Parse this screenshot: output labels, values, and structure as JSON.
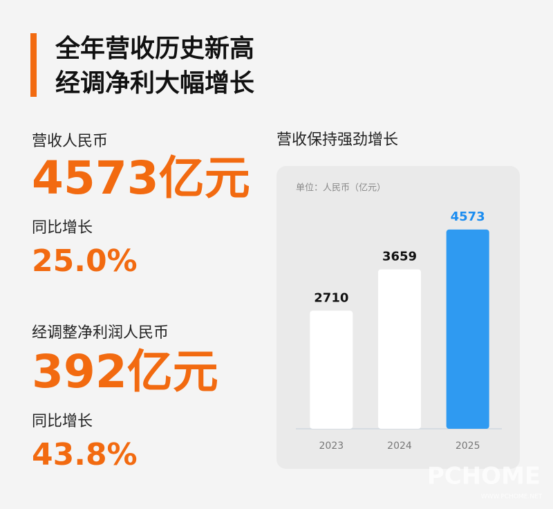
{
  "header": {
    "title_lines": [
      "全年营收历史新高",
      "经调净利大幅增长"
    ]
  },
  "stats": [
    {
      "label": "营收人民币",
      "value": "4573亿元",
      "growth_label": "同比增长",
      "growth": "25.0%"
    },
    {
      "label": "经调整净利润人民币",
      "value": "392亿元",
      "growth_label": "同比增长",
      "growth": "43.8%"
    }
  ],
  "chart_data": {
    "type": "bar",
    "title": "营收保持强劲增长",
    "unit_label": "单位：人民币（亿元）",
    "categories": [
      "2023",
      "2024",
      "2025"
    ],
    "values": [
      2710,
      3659,
      4573
    ],
    "colors": [
      "#ffffff",
      "#ffffff",
      "#2f9af1"
    ],
    "label_colors": [
      "#111111",
      "#111111",
      "#1a8cf0"
    ],
    "ylim": [
      0,
      5000
    ]
  },
  "watermark": {
    "logo": "PCHOME",
    "url": "WWW.PCHOME.NET"
  }
}
